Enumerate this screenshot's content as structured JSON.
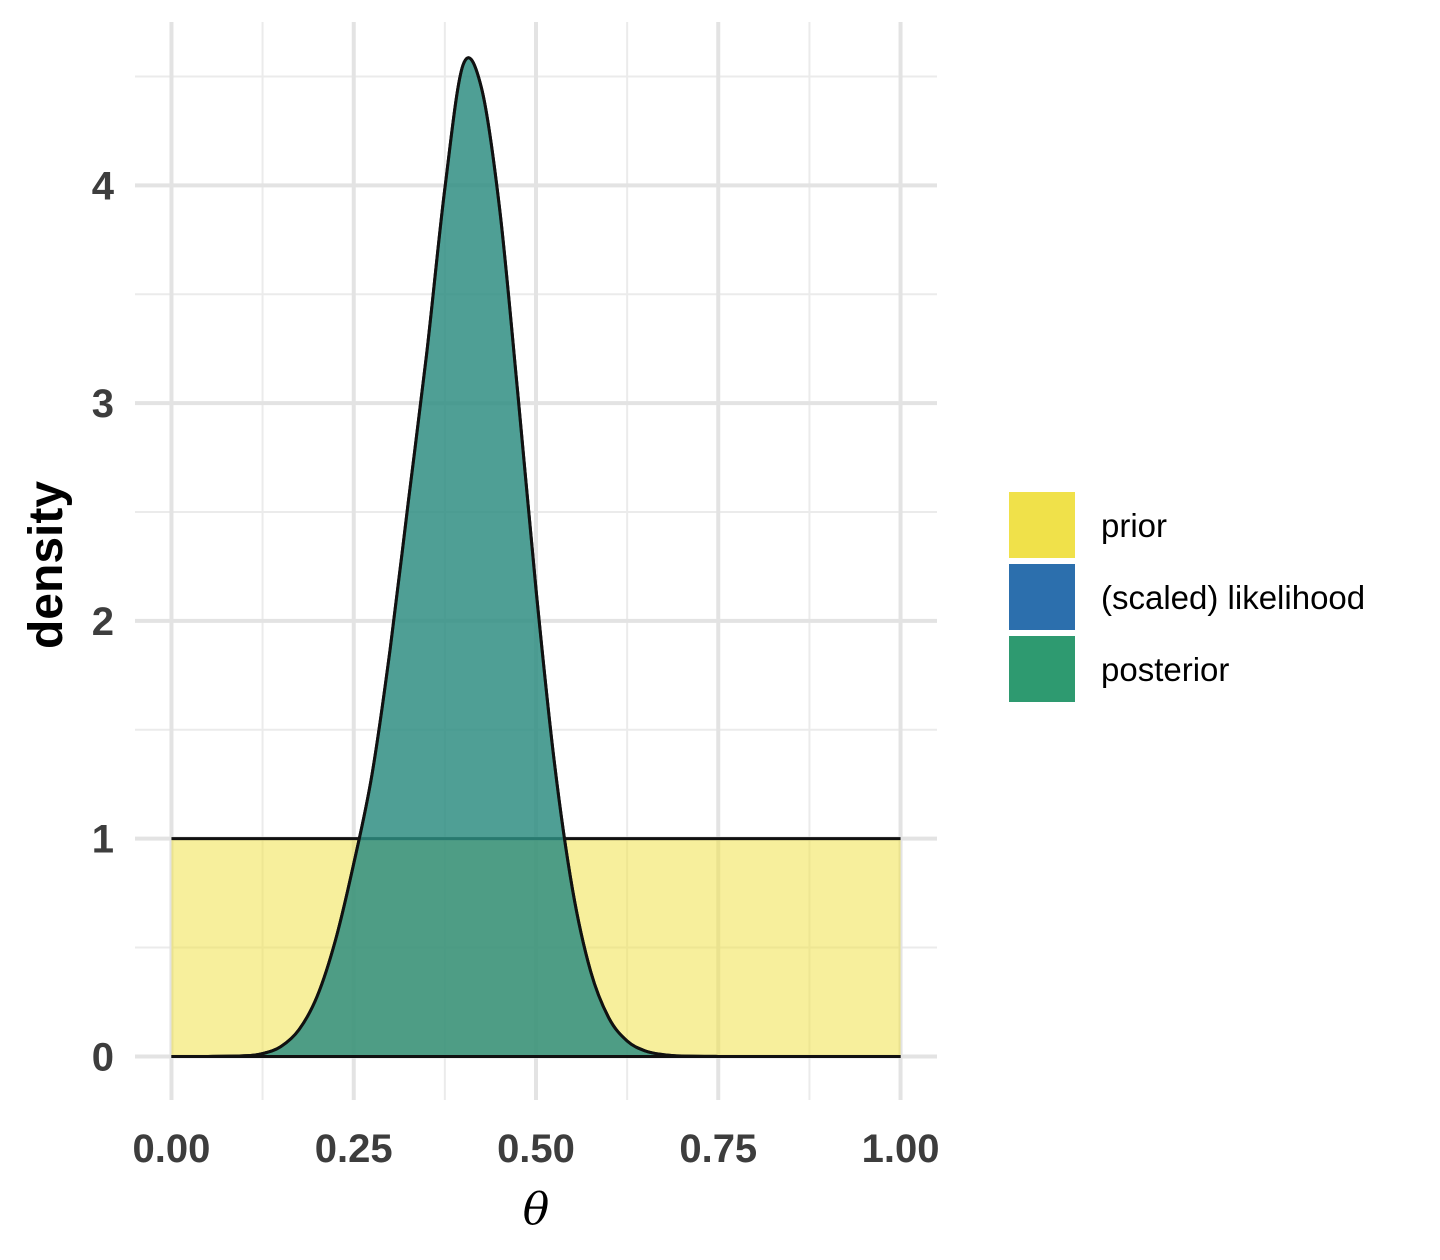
{
  "chart_data": {
    "type": "area",
    "xlabel": "θ",
    "ylabel": "density",
    "xlim": [
      -0.05,
      1.05
    ],
    "ylim": [
      -0.2,
      4.75
    ],
    "x_ticks": [
      0.0,
      0.25,
      0.5,
      0.75,
      1.0
    ],
    "x_tick_labels": [
      "0.00",
      "0.25",
      "0.50",
      "0.75",
      "1.00"
    ],
    "y_ticks": [
      0,
      1,
      2,
      3,
      4
    ],
    "y_tick_labels": [
      "0",
      "1",
      "2",
      "3",
      "4"
    ],
    "grid": true,
    "legend_position": "right",
    "series": [
      {
        "name": "prior",
        "color": "#f0e14a",
        "x": [
          0.0,
          1.0
        ],
        "y": [
          1.0,
          1.0
        ]
      },
      {
        "name": "(scaled) likelihood",
        "color": "#2c6fad",
        "x": [
          0.0,
          0.05,
          0.1,
          0.125,
          0.15,
          0.175,
          0.2,
          0.225,
          0.25,
          0.275,
          0.3,
          0.325,
          0.35,
          0.375,
          0.4,
          0.425,
          0.45,
          0.475,
          0.5,
          0.525,
          0.55,
          0.575,
          0.6,
          0.625,
          0.65,
          0.675,
          0.7,
          0.75,
          0.8,
          0.9,
          1.0
        ],
        "y": [
          0.0,
          0.0,
          0.003,
          0.013,
          0.045,
          0.123,
          0.277,
          0.534,
          0.885,
          1.293,
          1.871,
          2.55,
          3.225,
          3.985,
          4.553,
          4.45,
          3.895,
          3.045,
          2.145,
          1.355,
          0.768,
          0.39,
          0.176,
          0.071,
          0.025,
          0.008,
          0.002,
          0.0,
          0.0,
          0.0,
          0.0
        ]
      },
      {
        "name": "posterior",
        "color": "#2e9a70",
        "x": [
          0.0,
          0.05,
          0.1,
          0.125,
          0.15,
          0.175,
          0.2,
          0.225,
          0.25,
          0.275,
          0.3,
          0.325,
          0.35,
          0.375,
          0.4,
          0.425,
          0.45,
          0.475,
          0.5,
          0.525,
          0.55,
          0.575,
          0.6,
          0.625,
          0.65,
          0.675,
          0.7,
          0.75,
          0.8,
          0.9,
          1.0
        ],
        "y": [
          0.0,
          0.0,
          0.003,
          0.013,
          0.045,
          0.123,
          0.277,
          0.534,
          0.885,
          1.293,
          1.871,
          2.55,
          3.225,
          3.985,
          4.553,
          4.45,
          3.895,
          3.045,
          2.145,
          1.355,
          0.768,
          0.39,
          0.176,
          0.071,
          0.025,
          0.008,
          0.002,
          0.0,
          0.0,
          0.0,
          0.0
        ]
      }
    ]
  }
}
